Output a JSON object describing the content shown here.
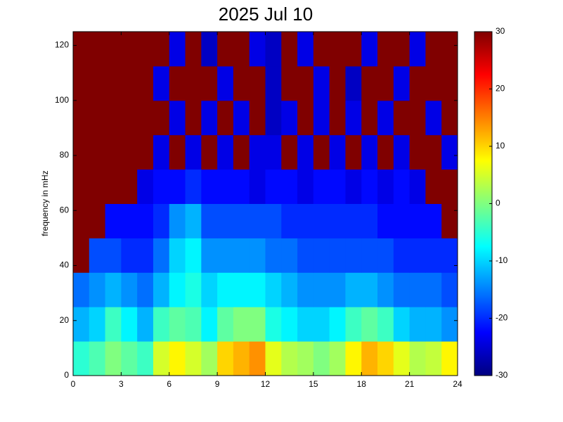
{
  "chart_data": {
    "type": "heatmap",
    "title": "2025 Jul 10",
    "y_label": "frequency in mHz",
    "xbins": [
      0,
      1,
      2,
      3,
      4,
      5,
      6,
      7,
      8,
      9,
      10,
      11,
      12,
      13,
      14,
      15,
      16,
      17,
      18,
      19,
      20,
      21,
      22,
      23,
      24
    ],
    "ybins": [
      0,
      12.5,
      25,
      37.5,
      50,
      62.5,
      75,
      87.5,
      100,
      112.5,
      125
    ],
    "values": [
      [
        -5,
        -3,
        0,
        -2,
        -4,
        5,
        8,
        5,
        2,
        10,
        12,
        14,
        6,
        3,
        2,
        0,
        2,
        8,
        12,
        10,
        6,
        3,
        4,
        8
      ],
      [
        -12,
        -10,
        -4,
        -8,
        -12,
        -4,
        -2,
        -3,
        -8,
        -2,
        0,
        0,
        -6,
        -8,
        -10,
        -10,
        -8,
        -4,
        -2,
        -4,
        -10,
        -12,
        -12,
        -14
      ],
      [
        -16,
        -14,
        -12,
        -14,
        -16,
        -12,
        -8,
        -6,
        -10,
        -8,
        -8,
        -8,
        -10,
        -12,
        -14,
        -14,
        -14,
        -12,
        -12,
        -14,
        -16,
        -16,
        -16,
        -18
      ],
      [
        30,
        -18,
        -18,
        -20,
        -20,
        -16,
        -10,
        -8,
        -14,
        -14,
        -14,
        -14,
        -16,
        -16,
        -18,
        -18,
        -18,
        -18,
        -18,
        -18,
        -20,
        -20,
        -20,
        -20
      ],
      [
        30,
        30,
        -22,
        -22,
        -22,
        -20,
        -14,
        -12,
        -18,
        -18,
        -18,
        -18,
        -18,
        -20,
        -20,
        -20,
        -20,
        -20,
        -20,
        -22,
        -22,
        -22,
        -22,
        30
      ],
      [
        30,
        30,
        30,
        30,
        -24,
        -22,
        -22,
        -20,
        -22,
        -22,
        -22,
        -24,
        -22,
        -22,
        -24,
        -22,
        -22,
        -24,
        -22,
        -24,
        -22,
        -24,
        30,
        30
      ],
      [
        30,
        30,
        30,
        30,
        30,
        -24,
        30,
        -24,
        30,
        -24,
        30,
        -24,
        -24,
        30,
        -24,
        30,
        -24,
        30,
        -24,
        30,
        -24,
        30,
        30,
        -24
      ],
      [
        30,
        30,
        30,
        30,
        30,
        30,
        -24,
        30,
        -24,
        30,
        -24,
        30,
        -26,
        -24,
        30,
        -24,
        30,
        -24,
        30,
        -24,
        30,
        30,
        -24,
        30
      ],
      [
        30,
        30,
        30,
        30,
        30,
        -24,
        30,
        30,
        30,
        -24,
        30,
        30,
        -26,
        30,
        30,
        -24,
        30,
        -26,
        30,
        30,
        -24,
        30,
        30,
        30
      ],
      [
        30,
        30,
        30,
        30,
        30,
        30,
        -24,
        30,
        -26,
        30,
        30,
        -24,
        -26,
        30,
        -24,
        30,
        30,
        30,
        -24,
        30,
        30,
        -24,
        30,
        30
      ]
    ],
    "colormap": "jet",
    "xlim": [
      0,
      24
    ],
    "xticks": [
      0,
      3,
      6,
      9,
      12,
      15,
      18,
      21,
      24
    ],
    "ylim": [
      0,
      125
    ],
    "yticks": [
      0,
      20,
      40,
      60,
      80,
      100,
      120
    ],
    "clim": [
      -30,
      30
    ],
    "cticks": [
      -30,
      -20,
      -10,
      0,
      10,
      20,
      30
    ]
  }
}
